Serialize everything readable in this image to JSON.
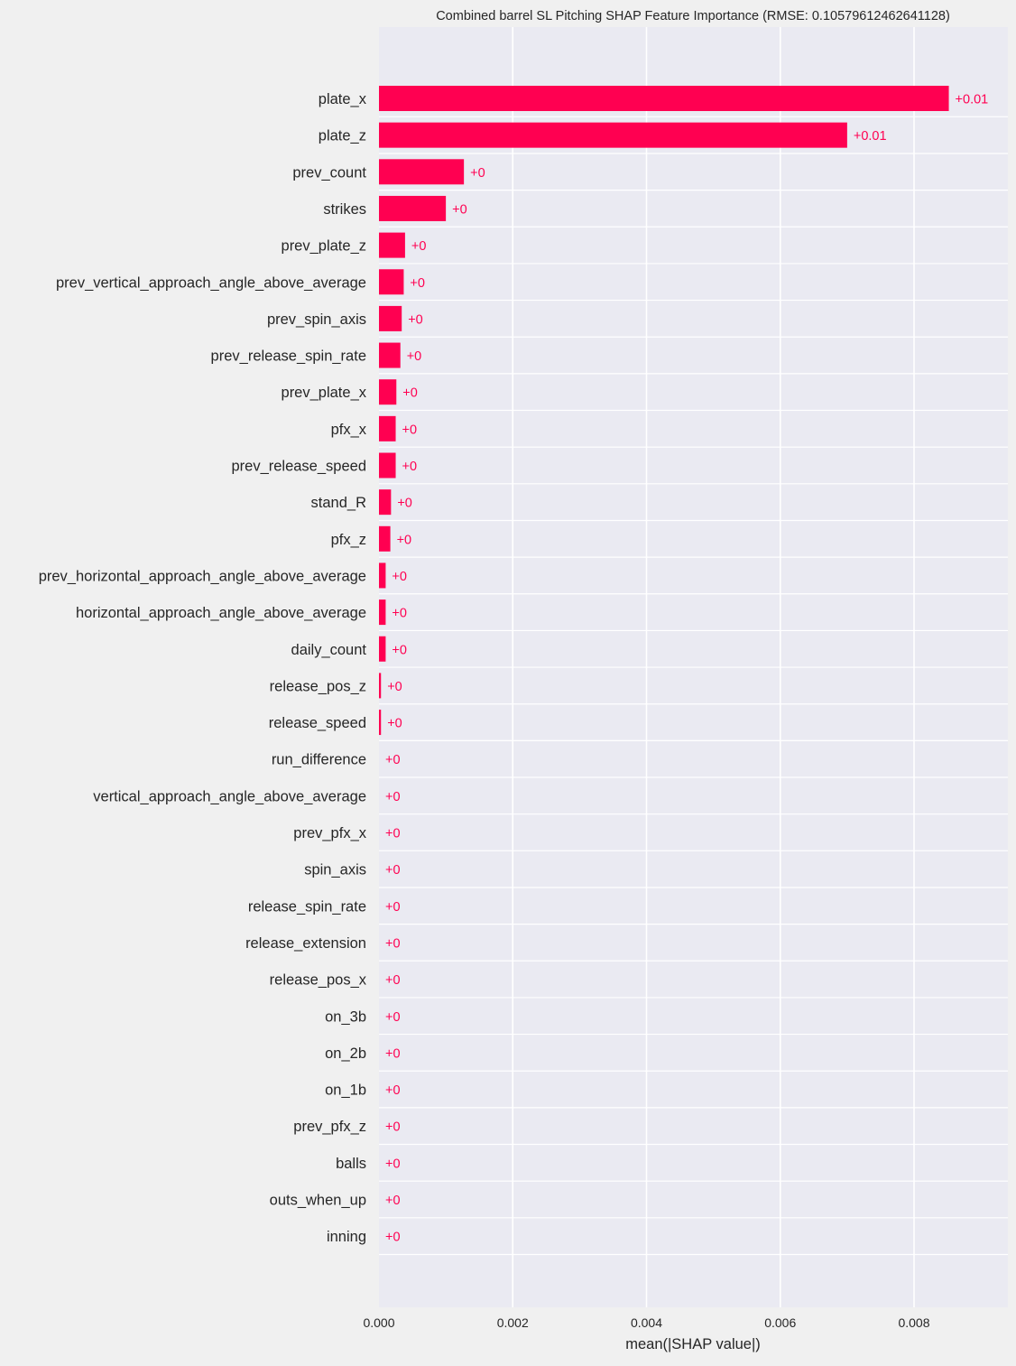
{
  "chart_data": {
    "type": "bar",
    "orientation": "horizontal",
    "title": "Combined barrel SL Pitching SHAP Feature Importance (RMSE: 0.10579612462641128)",
    "xlabel": "mean(|SHAP value|)",
    "ylabel": "",
    "xlim": [
      0,
      0.0094
    ],
    "xticks": [
      "0.000",
      "0.002",
      "0.004",
      "0.006",
      "0.008"
    ],
    "xtick_values": [
      0,
      0.002,
      0.004,
      0.006,
      0.008
    ],
    "grid": true,
    "categories": [
      "plate_x",
      "plate_z",
      "prev_count",
      "strikes",
      "prev_plate_z",
      "prev_vertical_approach_angle_above_average",
      "prev_spin_axis",
      "prev_release_spin_rate",
      "prev_plate_x",
      "pfx_x",
      "prev_release_speed",
      "stand_R",
      "pfx_z",
      "prev_horizontal_approach_angle_above_average",
      "horizontal_approach_angle_above_average",
      "daily_count",
      "release_pos_z",
      "release_speed",
      "run_difference",
      "vertical_approach_angle_above_average",
      "prev_pfx_x",
      "spin_axis",
      "release_spin_rate",
      "release_extension",
      "release_pos_x",
      "on_3b",
      "on_2b",
      "on_1b",
      "prev_pfx_z",
      "balls",
      "outs_when_up",
      "inning"
    ],
    "values": [
      0.00852,
      0.007,
      0.00127,
      0.001,
      0.00039,
      0.00037,
      0.00034,
      0.00032,
      0.00026,
      0.00025,
      0.00025,
      0.00018,
      0.00017,
      0.0001,
      0.0001,
      0.0001,
      3e-05,
      3e-05,
      0.0,
      0.0,
      0.0,
      0.0,
      0.0,
      0.0,
      0.0,
      0.0,
      0.0,
      0.0,
      0.0,
      0.0,
      0.0,
      0.0
    ],
    "value_labels": [
      "+0.01",
      "+0.01",
      "+0",
      "+0",
      "+0",
      "+0",
      "+0",
      "+0",
      "+0",
      "+0",
      "+0",
      "+0",
      "+0",
      "+0",
      "+0",
      "+0",
      "+0",
      "+0",
      "+0",
      "+0",
      "+0",
      "+0",
      "+0",
      "+0",
      "+0",
      "+0",
      "+0",
      "+0",
      "+0",
      "+0",
      "+0",
      "+0"
    ],
    "colors": {
      "bar": "#ff0051",
      "label": "#ff0051",
      "plot_background": "#eaeaf2",
      "figure_background": "#f0f0f0",
      "grid": "#ffffff",
      "text": "#262626"
    }
  }
}
